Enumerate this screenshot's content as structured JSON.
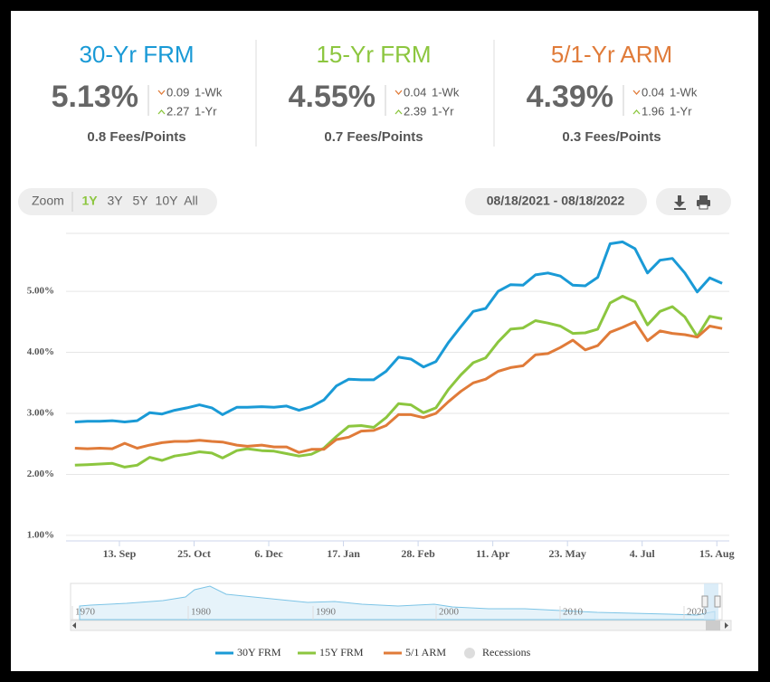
{
  "rates": [
    {
      "title": "30-Yr FRM",
      "color": "#1a9ad6",
      "rate": "5.13%",
      "week_change": "0.09",
      "week_label": "1-Wk",
      "year_change": "2.27",
      "year_label": "1-Yr",
      "fees": "0.8 Fees/Points"
    },
    {
      "title": "15-Yr FRM",
      "color": "#8cc63f",
      "rate": "4.55%",
      "week_change": "0.04",
      "week_label": "1-Wk",
      "year_change": "2.39",
      "year_label": "1-Yr",
      "fees": "0.7 Fees/Points"
    },
    {
      "title": "5/1-Yr ARM",
      "color": "#e07b39",
      "rate": "4.39%",
      "week_change": "0.04",
      "week_label": "1-Wk",
      "year_change": "1.96",
      "year_label": "1-Yr",
      "fees": "0.3 Fees/Points"
    }
  ],
  "zoom": {
    "label": "Zoom",
    "options": [
      "1Y",
      "3Y",
      "5Y",
      "10Y",
      "All"
    ],
    "active": 0
  },
  "date_range": "08/18/2021 - 08/18/2022",
  "navigator": {
    "labels": [
      "1970",
      "1980",
      "1990",
      "2000",
      "2010",
      "2020"
    ]
  },
  "chart_data": {
    "type": "line",
    "x": [
      "2021-08-19",
      "2021-08-26",
      "2021-09-02",
      "2021-09-09",
      "2021-09-16",
      "2021-09-23",
      "2021-09-30",
      "2021-10-07",
      "2021-10-14",
      "2021-10-21",
      "2021-10-28",
      "2021-11-04",
      "2021-11-10",
      "2021-11-18",
      "2021-11-24",
      "2021-12-02",
      "2021-12-09",
      "2021-12-16",
      "2021-12-23",
      "2021-12-30",
      "2022-01-06",
      "2022-01-13",
      "2022-01-20",
      "2022-01-27",
      "2022-02-03",
      "2022-02-10",
      "2022-02-17",
      "2022-02-24",
      "2022-03-03",
      "2022-03-10",
      "2022-03-17",
      "2022-03-24",
      "2022-03-31",
      "2022-04-07",
      "2022-04-14",
      "2022-04-21",
      "2022-04-28",
      "2022-05-05",
      "2022-05-12",
      "2022-05-19",
      "2022-05-26",
      "2022-06-02",
      "2022-06-09",
      "2022-06-16",
      "2022-06-23",
      "2022-06-30",
      "2022-07-07",
      "2022-07-14",
      "2022-07-21",
      "2022-07-28",
      "2022-08-04",
      "2022-08-11",
      "2022-08-18"
    ],
    "series": [
      {
        "name": "30Y FRM",
        "color": "#1a9ad6",
        "values": [
          2.86,
          2.87,
          2.87,
          2.88,
          2.86,
          2.88,
          3.01,
          2.99,
          3.05,
          3.09,
          3.14,
          3.09,
          2.98,
          3.1,
          3.1,
          3.11,
          3.1,
          3.12,
          3.05,
          3.11,
          3.22,
          3.45,
          3.56,
          3.55,
          3.55,
          3.69,
          3.92,
          3.89,
          3.76,
          3.85,
          4.16,
          4.42,
          4.67,
          4.72,
          5.0,
          5.11,
          5.1,
          5.27,
          5.3,
          5.25,
          5.1,
          5.09,
          5.23,
          5.78,
          5.81,
          5.7,
          5.3,
          5.51,
          5.54,
          5.3,
          4.99,
          5.22,
          5.13
        ]
      },
      {
        "name": "15Y FRM",
        "color": "#8cc63f",
        "values": [
          2.15,
          2.16,
          2.17,
          2.18,
          2.12,
          2.15,
          2.28,
          2.23,
          2.3,
          2.33,
          2.37,
          2.35,
          2.27,
          2.39,
          2.42,
          2.39,
          2.38,
          2.34,
          2.3,
          2.33,
          2.43,
          2.62,
          2.79,
          2.8,
          2.77,
          2.93,
          3.16,
          3.14,
          3.01,
          3.09,
          3.39,
          3.63,
          3.83,
          3.91,
          4.17,
          4.38,
          4.4,
          4.52,
          4.48,
          4.43,
          4.31,
          4.32,
          4.38,
          4.81,
          4.92,
          4.83,
          4.45,
          4.67,
          4.75,
          4.58,
          4.26,
          4.59,
          4.55
        ]
      },
      {
        "name": "5/1 ARM",
        "color": "#e07b39",
        "values": [
          2.43,
          2.42,
          2.43,
          2.42,
          2.51,
          2.43,
          2.48,
          2.52,
          2.54,
          2.54,
          2.56,
          2.54,
          2.53,
          2.48,
          2.46,
          2.48,
          2.45,
          2.45,
          2.36,
          2.41,
          2.41,
          2.57,
          2.61,
          2.71,
          2.72,
          2.8,
          2.98,
          2.98,
          2.93,
          3.0,
          3.19,
          3.36,
          3.5,
          3.56,
          3.69,
          3.75,
          3.78,
          3.96,
          3.98,
          4.08,
          4.2,
          4.04,
          4.11,
          4.33,
          4.41,
          4.5,
          4.19,
          4.35,
          4.31,
          4.29,
          4.25,
          4.43,
          4.39
        ]
      }
    ],
    "recessions": {
      "name": "Recessions",
      "color": "#dddddd"
    },
    "xlim": [
      "2021-08-14",
      "2022-08-22"
    ],
    "xticks": [
      {
        "value": "2021-09-13",
        "label": "13. Sep"
      },
      {
        "value": "2021-10-25",
        "label": "25. Oct"
      },
      {
        "value": "2021-12-06",
        "label": "6. Dec"
      },
      {
        "value": "2022-01-17",
        "label": "17. Jan"
      },
      {
        "value": "2022-02-28",
        "label": "28. Feb"
      },
      {
        "value": "2022-04-11",
        "label": "11. Apr"
      },
      {
        "value": "2022-05-23",
        "label": "23. May"
      },
      {
        "value": "2022-07-04",
        "label": "4. Jul"
      },
      {
        "value": "2022-08-15",
        "label": "15. Aug"
      }
    ],
    "ylim": [
      0.91,
      5.95
    ],
    "yticks": [
      {
        "value": 1,
        "label": "1.00%"
      },
      {
        "value": 2,
        "label": "2.00%"
      },
      {
        "value": 3,
        "label": "3.00%"
      },
      {
        "value": 4,
        "label": "4.00%"
      },
      {
        "value": 5,
        "label": "5.00%"
      }
    ],
    "grid": true
  }
}
